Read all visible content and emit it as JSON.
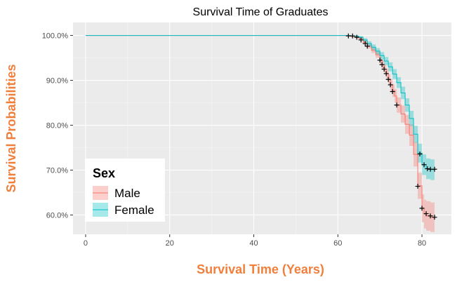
{
  "chart_data": {
    "type": "line",
    "title": "Survival Time of Graduates",
    "xlabel": "Survival Time (Years)",
    "ylabel": "Survival Probabilities",
    "xlim": [
      -3,
      87
    ],
    "ylim": [
      0.557,
      1.029
    ],
    "xticks": [
      0,
      20,
      40,
      60,
      80
    ],
    "xtick_labels": [
      "0",
      "20",
      "40",
      "60",
      "80"
    ],
    "yticks": [
      0.6,
      0.7,
      0.8,
      0.9,
      1.0
    ],
    "ytick_labels": [
      "60.0%",
      "70.0%",
      "80.0%",
      "90.0%",
      "100.0%"
    ],
    "grid": true,
    "legend": {
      "title": "Sex",
      "position": "bottom-left",
      "entries": [
        "Male",
        "Female"
      ]
    },
    "series": [
      {
        "name": "Male",
        "color": "#f8766d",
        "fill": "#f8766d",
        "x": [
          0,
          63,
          64,
          65,
          66,
          67,
          68,
          69,
          70,
          70.5,
          71,
          71.5,
          72,
          72.5,
          73,
          73.5,
          74,
          75,
          76,
          77,
          78,
          79,
          80,
          80.5,
          81,
          82,
          83
        ],
        "y": [
          1.0,
          0.998,
          0.997,
          0.993,
          0.985,
          0.976,
          0.967,
          0.957,
          0.944,
          0.935,
          0.925,
          0.915,
          0.902,
          0.89,
          0.877,
          0.865,
          0.845,
          0.825,
          0.802,
          0.778,
          0.735,
          0.665,
          0.615,
          0.602,
          0.598,
          0.595,
          0.595
        ],
        "lower": [
          1.0,
          0.996,
          0.994,
          0.99,
          0.981,
          0.971,
          0.961,
          0.95,
          0.936,
          0.926,
          0.915,
          0.904,
          0.89,
          0.877,
          0.863,
          0.85,
          0.828,
          0.806,
          0.781,
          0.754,
          0.708,
          0.636,
          0.584,
          0.57,
          0.565,
          0.562,
          0.562
        ],
        "upper": [
          1.0,
          1.0,
          1.0,
          0.996,
          0.989,
          0.981,
          0.973,
          0.964,
          0.952,
          0.944,
          0.935,
          0.926,
          0.914,
          0.903,
          0.891,
          0.88,
          0.862,
          0.844,
          0.823,
          0.802,
          0.762,
          0.694,
          0.646,
          0.634,
          0.631,
          0.628,
          0.628
        ]
      },
      {
        "name": "Female",
        "color": "#00bfc4",
        "fill": "#00bfc4",
        "x": [
          0,
          63,
          64,
          65,
          66,
          67,
          68,
          69,
          70,
          71,
          72,
          73,
          74,
          75,
          76,
          77,
          78,
          79,
          80,
          81,
          82,
          83
        ],
        "y": [
          1.0,
          0.999,
          0.998,
          0.996,
          0.99,
          0.982,
          0.974,
          0.965,
          0.955,
          0.943,
          0.93,
          0.914,
          0.895,
          0.872,
          0.845,
          0.815,
          0.78,
          0.738,
          0.712,
          0.703,
          0.701,
          0.701
        ],
        "lower": [
          1.0,
          0.998,
          0.996,
          0.993,
          0.986,
          0.977,
          0.968,
          0.958,
          0.947,
          0.934,
          0.92,
          0.903,
          0.883,
          0.858,
          0.83,
          0.798,
          0.761,
          0.717,
          0.689,
          0.68,
          0.678,
          0.678
        ],
        "upper": [
          1.0,
          1.0,
          1.0,
          0.999,
          0.994,
          0.987,
          0.98,
          0.972,
          0.963,
          0.952,
          0.94,
          0.925,
          0.907,
          0.886,
          0.86,
          0.832,
          0.799,
          0.759,
          0.735,
          0.726,
          0.724,
          0.724
        ]
      }
    ],
    "censor_marks": [
      [
        62.5,
        0.999
      ],
      [
        63.5,
        0.999
      ],
      [
        64.5,
        0.996
      ],
      [
        65.5,
        0.99
      ],
      [
        66.5,
        0.982
      ],
      [
        67,
        0.976
      ],
      [
        70,
        0.945
      ],
      [
        70.5,
        0.935
      ],
      [
        71,
        0.925
      ],
      [
        71.5,
        0.915
      ],
      [
        72,
        0.902
      ],
      [
        72.5,
        0.89
      ],
      [
        73,
        0.875
      ],
      [
        74,
        0.845
      ],
      [
        79.5,
        0.736
      ],
      [
        80.5,
        0.712
      ],
      [
        81.3,
        0.703
      ],
      [
        82,
        0.702
      ],
      [
        83,
        0.702
      ],
      [
        79,
        0.664
      ],
      [
        80,
        0.615
      ],
      [
        81,
        0.603
      ],
      [
        82,
        0.598
      ],
      [
        83,
        0.595
      ]
    ]
  }
}
